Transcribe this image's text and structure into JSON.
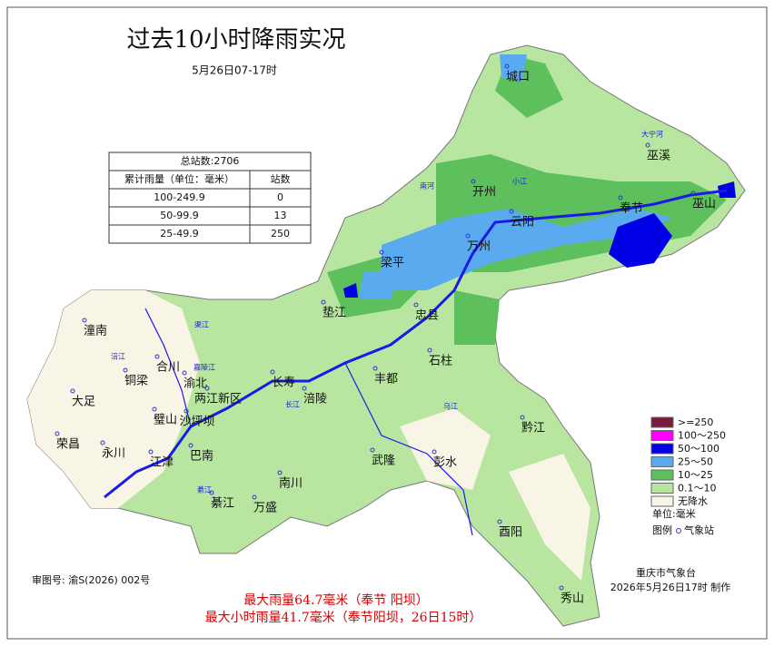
{
  "title": "过去10小时降雨实况",
  "subtitle": "5月26日07-17时",
  "summary_table": {
    "total": "总站数:2706",
    "header": [
      "累计雨量（单位：毫米）",
      "站数"
    ],
    "rows": [
      [
        "100-249.9",
        "0"
      ],
      [
        "50-99.9",
        "13"
      ],
      [
        "25-49.9",
        "250"
      ]
    ]
  },
  "legend": {
    "items": [
      {
        "label": ">=250",
        "color": "#7a1a3c"
      },
      {
        "label": "100～250",
        "color": "#ff00ff"
      },
      {
        "label": "50～100",
        "color": "#0000e6"
      },
      {
        "label": "25～50",
        "color": "#5aaaf0"
      },
      {
        "label": "10～25",
        "color": "#5dc05d"
      },
      {
        "label": "0.1～10",
        "color": "#b8e6a0"
      },
      {
        "label": "无降水",
        "color": "#f8f4e6"
      }
    ],
    "unit": "单位:毫米",
    "key": "图例",
    "station": "气象站"
  },
  "places": [
    "城口",
    "巫溪",
    "开州",
    "云阳",
    "奉节",
    "巫山",
    "万州",
    "梁平",
    "垫江",
    "忠县",
    "石柱",
    "丰都",
    "涪陵",
    "长寿",
    "渝北",
    "两江新区",
    "合川",
    "潼南",
    "铜梁",
    "大足",
    "璧山",
    "沙坪坝",
    "荣昌",
    "永川",
    "江津",
    "巴南",
    "南川",
    "綦江",
    "万盛",
    "武隆",
    "彭水",
    "黔江",
    "酉阳",
    "秀山"
  ],
  "rivers": [
    "大宁河",
    "南河",
    "小江",
    "长江",
    "嘉陵江",
    "渠江",
    "涪江",
    "乌江",
    "綦江"
  ],
  "footer": {
    "approval": "审图号: 渝S(2026) 002号",
    "agency": "重庆市气象台",
    "made": "2026年5月26日17时 制作",
    "max_rain": "最大雨量64.7毫米（奉节 阳坝）",
    "max_hourly": "最大小时雨量41.7毫米（奉节阳坝，26日15时）"
  }
}
